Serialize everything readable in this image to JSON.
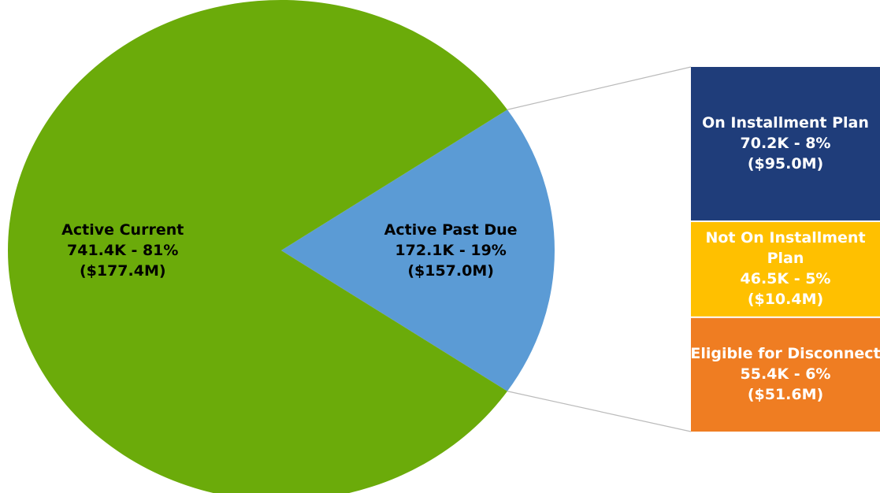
{
  "chart_data": {
    "type": "pie_of_bar",
    "pie": {
      "categories": [
        "Active Current",
        "Active Past Due"
      ],
      "values": [
        81,
        19
      ],
      "value_labels": [
        "741.4K - 81%",
        "172.1K - 19%"
      ],
      "amounts": [
        "($177.4M)",
        "($157.0M)"
      ],
      "colors": [
        "#6bab0a",
        "#5b9bd5"
      ]
    },
    "bar": {
      "categories": [
        "On Installment Plan",
        "Not On Installment Plan",
        "Eligible for Disconnect"
      ],
      "values": [
        8,
        5,
        6
      ],
      "value_labels": [
        "70.2K - 8%",
        "46.5K - 5%",
        "55.4K - 6%"
      ],
      "amounts": [
        "($95.0M)",
        "($10.4M)",
        "($51.6M)"
      ],
      "colors": [
        "#1f3d7a",
        "#ffc000",
        "#ef7d22"
      ]
    }
  }
}
